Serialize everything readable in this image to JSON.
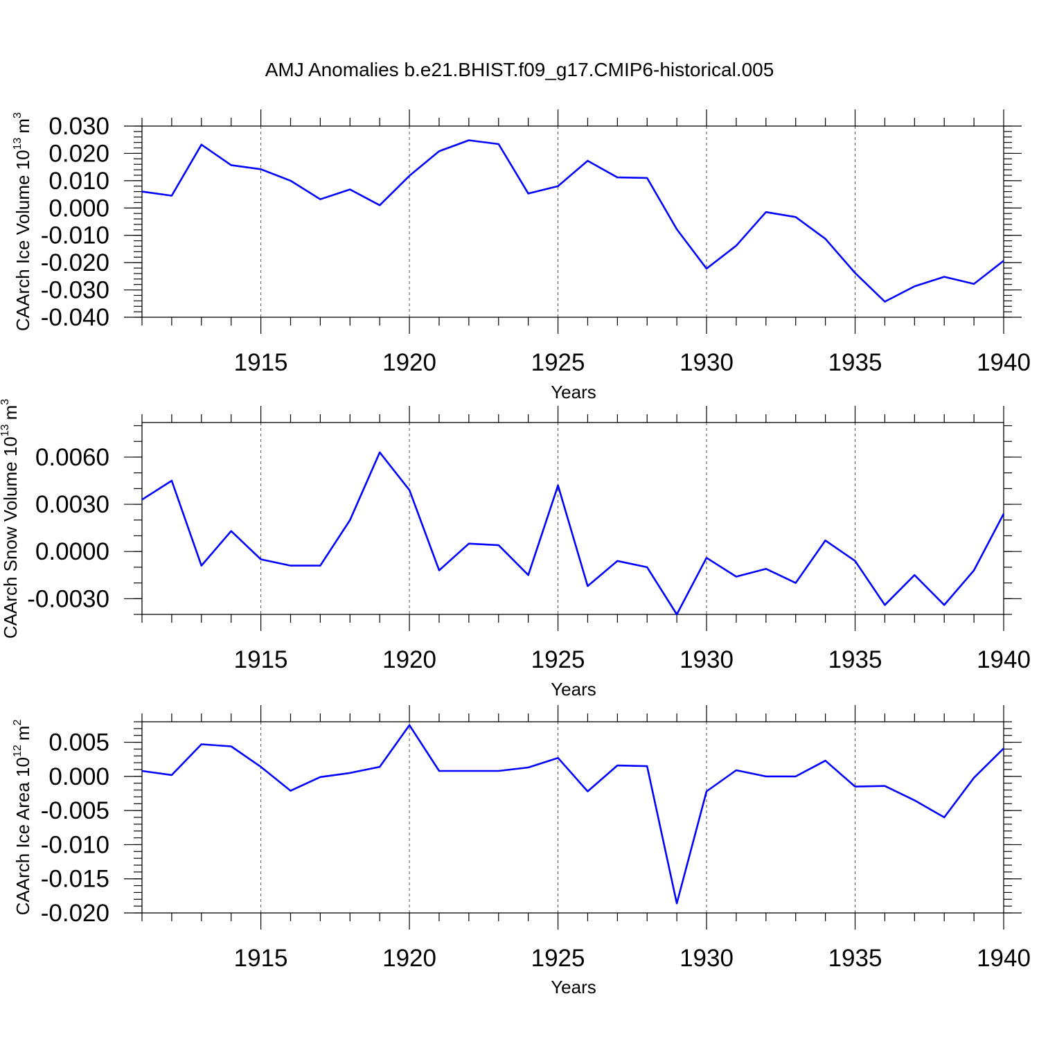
{
  "figure": {
    "title": "AMJ Anomalies b.e21.BHIST.f09_g17.CMIP6-historical.005"
  },
  "chart_data": [
    {
      "type": "line",
      "xlabel": "Years",
      "ylabel": "CAArch Ice Volume 10",
      "ylabel_exponent": "13",
      "ylabel_unit": "m",
      "ylabel_unit_exponent": "3",
      "xlim": [
        1911,
        1940
      ],
      "ylim": [
        -0.04,
        0.03
      ],
      "xticks": [
        1915,
        1920,
        1925,
        1930,
        1935,
        1940
      ],
      "xtick_labels": [
        "1915",
        "1920",
        "1925",
        "1930",
        "1935",
        "1940"
      ],
      "yticks": [
        -0.04,
        -0.03,
        -0.02,
        -0.01,
        0.0,
        0.01,
        0.02,
        0.03
      ],
      "ytick_labels": [
        "-0.040",
        "-0.030",
        "-0.020",
        "-0.010",
        "0.000",
        "0.010",
        "0.020",
        "0.030"
      ],
      "y_minor_step": 0.002,
      "grid": "vertical-dashed-at-major-x",
      "color": "#0000ff",
      "x": [
        1911,
        1912,
        1913,
        1914,
        1915,
        1916,
        1917,
        1918,
        1919,
        1920,
        1921,
        1922,
        1923,
        1924,
        1925,
        1926,
        1927,
        1928,
        1929,
        1930,
        1931,
        1932,
        1933,
        1934,
        1935,
        1936,
        1937,
        1938,
        1939,
        1940
      ],
      "values": [
        0.006,
        0.0045,
        0.0232,
        0.0157,
        0.0142,
        0.01,
        0.0032,
        0.0068,
        0.001,
        0.0118,
        0.0208,
        0.0248,
        0.0234,
        0.0053,
        0.008,
        0.0173,
        0.0112,
        0.011,
        -0.0078,
        -0.0222,
        -0.0138,
        -0.0015,
        -0.0033,
        -0.0113,
        -0.0238,
        -0.0343,
        -0.0287,
        -0.0252,
        -0.0278,
        -0.0193
      ]
    },
    {
      "type": "line",
      "xlabel": "Years",
      "ylabel": "CAArch Snow Volume 10",
      "ylabel_exponent": "13",
      "ylabel_unit": "m",
      "ylabel_unit_exponent": "3",
      "xlim": [
        1911,
        1940
      ],
      "ylim": [
        -0.004,
        0.0082
      ],
      "xticks": [
        1915,
        1920,
        1925,
        1930,
        1935,
        1940
      ],
      "xtick_labels": [
        "1915",
        "1920",
        "1925",
        "1930",
        "1935",
        "1940"
      ],
      "yticks": [
        -0.003,
        0.0,
        0.003,
        0.006
      ],
      "ytick_labels": [
        "-0.0030",
        "0.0000",
        "0.0030",
        "0.0060"
      ],
      "y_minor_step": 0.001,
      "grid": "vertical-dashed-at-major-x",
      "color": "#0000ff",
      "x": [
        1911,
        1912,
        1913,
        1914,
        1915,
        1916,
        1917,
        1918,
        1919,
        1920,
        1921,
        1922,
        1923,
        1924,
        1925,
        1926,
        1927,
        1928,
        1929,
        1930,
        1931,
        1932,
        1933,
        1934,
        1935,
        1936,
        1937,
        1938,
        1939,
        1940
      ],
      "values": [
        0.0033,
        0.0045,
        -0.0009,
        0.0013,
        -0.0005,
        -0.0009,
        -0.0009,
        0.002,
        0.0063,
        0.0039,
        -0.0012,
        0.0005,
        0.0004,
        -0.0015,
        0.0042,
        -0.0022,
        -0.0006,
        -0.001,
        -0.004,
        -0.0004,
        -0.0016,
        -0.0011,
        -0.002,
        0.0007,
        -0.0006,
        -0.0034,
        -0.0015,
        -0.0034,
        -0.0012,
        0.0024
      ]
    },
    {
      "type": "line",
      "xlabel": "Years",
      "ylabel": "CAArch Ice Area 10",
      "ylabel_exponent": "12",
      "ylabel_unit": "m",
      "ylabel_unit_exponent": "2",
      "xlim": [
        1911,
        1940
      ],
      "ylim": [
        -0.02,
        0.008
      ],
      "xticks": [
        1915,
        1920,
        1925,
        1930,
        1935,
        1940
      ],
      "xtick_labels": [
        "1915",
        "1920",
        "1925",
        "1930",
        "1935",
        "1940"
      ],
      "yticks": [
        -0.02,
        -0.015,
        -0.01,
        -0.005,
        0.0,
        0.005
      ],
      "ytick_labels": [
        "-0.020",
        "-0.015",
        "-0.010",
        "-0.005",
        "0.000",
        "0.005"
      ],
      "y_minor_step": 0.001,
      "grid": "vertical-dashed-at-major-x",
      "color": "#0000ff",
      "x": [
        1911,
        1912,
        1913,
        1914,
        1915,
        1916,
        1917,
        1918,
        1919,
        1920,
        1921,
        1922,
        1923,
        1924,
        1925,
        1926,
        1927,
        1928,
        1929,
        1930,
        1931,
        1932,
        1933,
        1934,
        1935,
        1936,
        1937,
        1938,
        1939,
        1940
      ],
      "values": [
        0.0008,
        0.0002,
        0.0047,
        0.0044,
        0.0014,
        -0.0021,
        -0.0001,
        0.0005,
        0.0014,
        0.0075,
        0.0008,
        0.0008,
        0.0008,
        0.0013,
        0.0027,
        -0.0022,
        0.0016,
        0.0015,
        -0.0186,
        -0.0022,
        0.0009,
        0.0,
        0.0,
        0.0023,
        -0.0015,
        -0.0014,
        -0.0035,
        -0.006,
        -0.0002,
        0.0041
      ]
    }
  ]
}
